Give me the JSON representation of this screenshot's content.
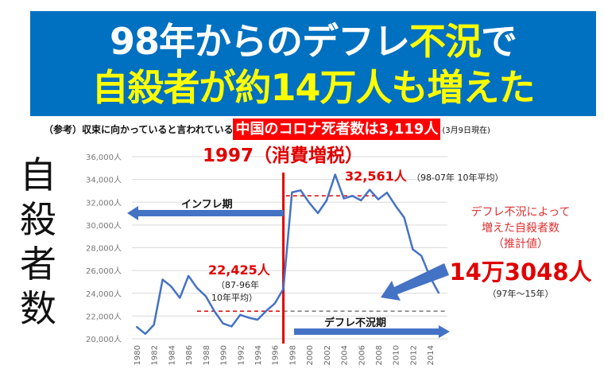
{
  "banner": {
    "line1_a": "98年からのデフレ",
    "line1_b": "不況",
    "line1_c": "で",
    "line2": "自殺者が約14万人も増えた"
  },
  "subtitle": {
    "prefix": "（参考）収束に向かっていると言われている",
    "highlight": "中国のコロナ死者数は3,119人",
    "suffix": "(3月9日現在)"
  },
  "vertical_label": [
    "自",
    "殺",
    "者",
    "数"
  ],
  "colors": {
    "banner": "#0070c0",
    "yellow": "#ffff00",
    "red": "#ff0000",
    "line": "#4472c4",
    "annotation_red": "#e00000"
  },
  "annotations": {
    "tax_year": "1997（消費増税）",
    "avg_after": "32,561人",
    "avg_after_note": "（98-07年 10年平均）",
    "avg_before": "22,425人",
    "avg_before_note1": "（87-96年",
    "avg_before_note2": "10年平均）",
    "inflation_period": "インフレ期",
    "deflation_period": "デフレ不況期",
    "estimate_line1": "デフレ不況によって",
    "estimate_line2": "増えた自殺者数",
    "estimate_line3": "（推計値）",
    "estimate_value": "14万3048人",
    "estimate_range": "（97年～15年）"
  },
  "chart_data": {
    "type": "line",
    "title": "",
    "xlabel": "",
    "ylabel": "自殺者数",
    "ylim": [
      20000,
      36000
    ],
    "yticks": [
      20000,
      22000,
      24000,
      26000,
      28000,
      30000,
      32000,
      34000,
      36000
    ],
    "ytick_labels": [
      "20,000人",
      "22,000人",
      "24,000人",
      "26,000人",
      "28,000人",
      "30,000人",
      "32,000人",
      "34,000人",
      "36,000人"
    ],
    "xtick_labels": [
      "1980",
      "1982",
      "1984",
      "1986",
      "1988",
      "1990",
      "1992",
      "1994",
      "1996",
      "1998",
      "2000",
      "2002",
      "2004",
      "2006",
      "2008",
      "2010",
      "2012",
      "2014"
    ],
    "grid": true,
    "x": [
      1980,
      1981,
      1982,
      1983,
      1984,
      1985,
      1986,
      1987,
      1988,
      1989,
      1990,
      1991,
      1992,
      1993,
      1994,
      1995,
      1996,
      1997,
      1998,
      1999,
      2000,
      2001,
      2002,
      2003,
      2004,
      2005,
      2006,
      2007,
      2008,
      2009,
      2010,
      2011,
      2012,
      2013,
      2014,
      2015
    ],
    "series": [
      {
        "name": "自殺者数",
        "values": [
          21048,
          20434,
          21228,
          25202,
          24596,
          23599,
          25524,
          24460,
          23742,
          22436,
          21346,
          21084,
          22104,
          21851,
          21679,
          22445,
          23104,
          24391,
          32863,
          33048,
          31957,
          31042,
          32143,
          34427,
          32325,
          32552,
          32155,
          33093,
          32249,
          32845,
          31690,
          30651,
          27858,
          27283,
          25427,
          24025
        ]
      }
    ],
    "reference_lines": [
      {
        "name": "1997",
        "x": 1997
      },
      {
        "name": "98-07 avg",
        "y": 32561,
        "x_range": [
          1997.3,
          2008
        ]
      },
      {
        "name": "87-96 avg",
        "y": 22425,
        "x_range": [
          1987,
          2017
        ]
      }
    ]
  }
}
